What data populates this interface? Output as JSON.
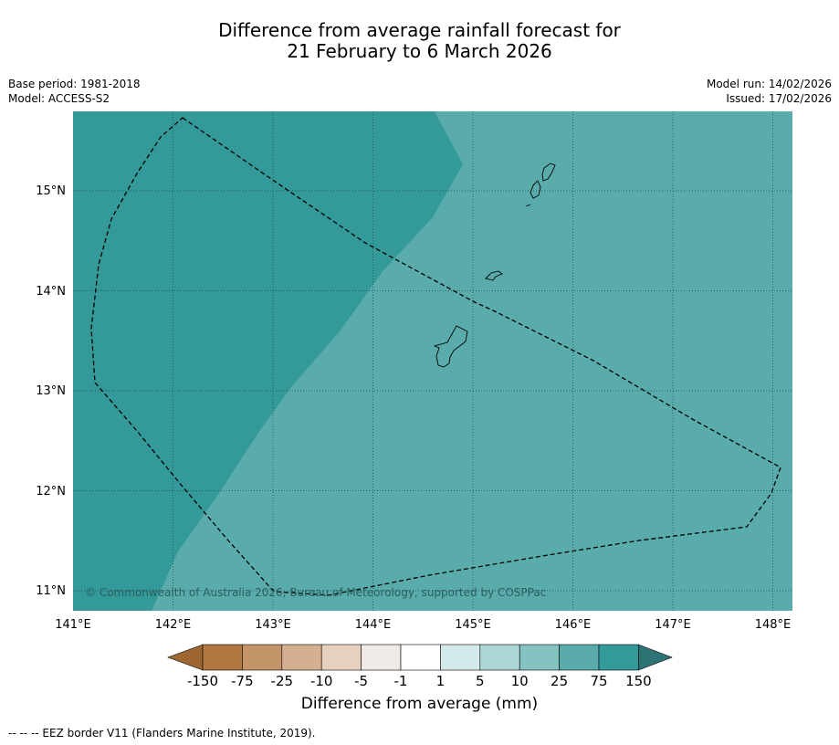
{
  "title": {
    "line1": "Difference from average rainfall forecast for",
    "line2": "21 February to 6 March 2026"
  },
  "meta_left": {
    "base_period": "Base period: 1981-2018",
    "model": "Model: ACCESS-S2"
  },
  "meta_right": {
    "model_run": "Model run: 14/02/2026",
    "issued": "Issued: 17/02/2026"
  },
  "map": {
    "lon_ticks": [
      "141°E",
      "142°E",
      "143°E",
      "144°E",
      "145°E",
      "146°E",
      "147°E",
      "148°E"
    ],
    "lat_ticks": [
      "15°N",
      "14°N",
      "13°N",
      "12°N",
      "11°N"
    ],
    "copyright": "© Commonwealth of Australia 2026, Bureau of Meteorology, supported by COSPPac",
    "colors": {
      "high": "#339999",
      "mid": "#5aacac"
    }
  },
  "colorbar": {
    "labels": [
      "-150",
      "-75",
      "-25",
      "-10",
      "-5",
      "-1",
      "1",
      "5",
      "10",
      "25",
      "75",
      "150"
    ],
    "colors": [
      "#9e6630",
      "#b07840",
      "#c29468",
      "#d4b090",
      "#e6d0be",
      "#efeae6",
      "#ffffff",
      "#d4eaea",
      "#acd6d6",
      "#84c2c2",
      "#5aacac",
      "#339999",
      "#2d7373"
    ],
    "label": "Difference from average (mm)"
  },
  "footnote": "--  --  -- EEZ border V11 (Flanders Marine Institute, 2019)."
}
